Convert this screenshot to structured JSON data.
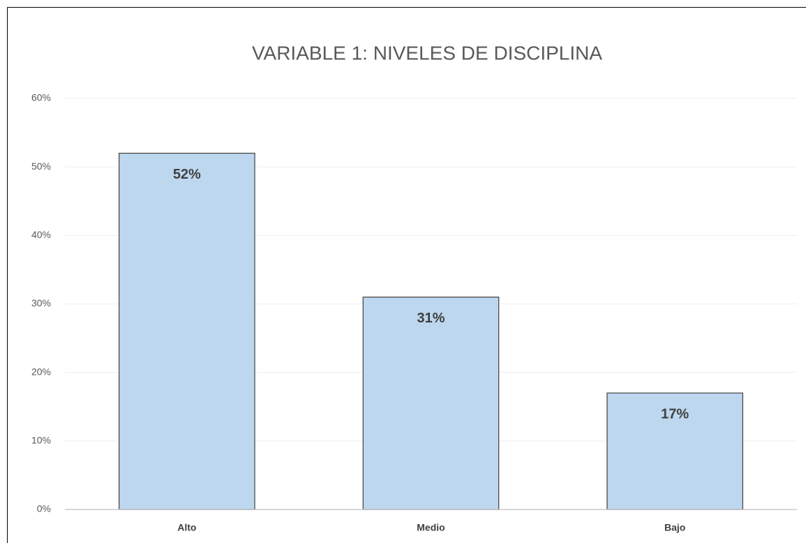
{
  "chart_data": {
    "type": "bar",
    "title": "VARIABLE 1: NIVELES DE DISCIPLINA",
    "categories": [
      "Alto",
      "Medio",
      "Bajo"
    ],
    "values": [
      52,
      31,
      17
    ],
    "value_labels": [
      "52%",
      "31%",
      "17%"
    ],
    "color": "#bdd7ee",
    "ylim": [
      0,
      60
    ],
    "yticks": [
      {
        "value": 0,
        "label": "0%"
      },
      {
        "value": 10,
        "label": "10%"
      },
      {
        "value": 20,
        "label": "20%"
      },
      {
        "value": 30,
        "label": "30%"
      },
      {
        "value": 40,
        "label": "40%"
      },
      {
        "value": 50,
        "label": "50%"
      },
      {
        "value": 60,
        "label": "60%"
      }
    ],
    "grid": true
  }
}
